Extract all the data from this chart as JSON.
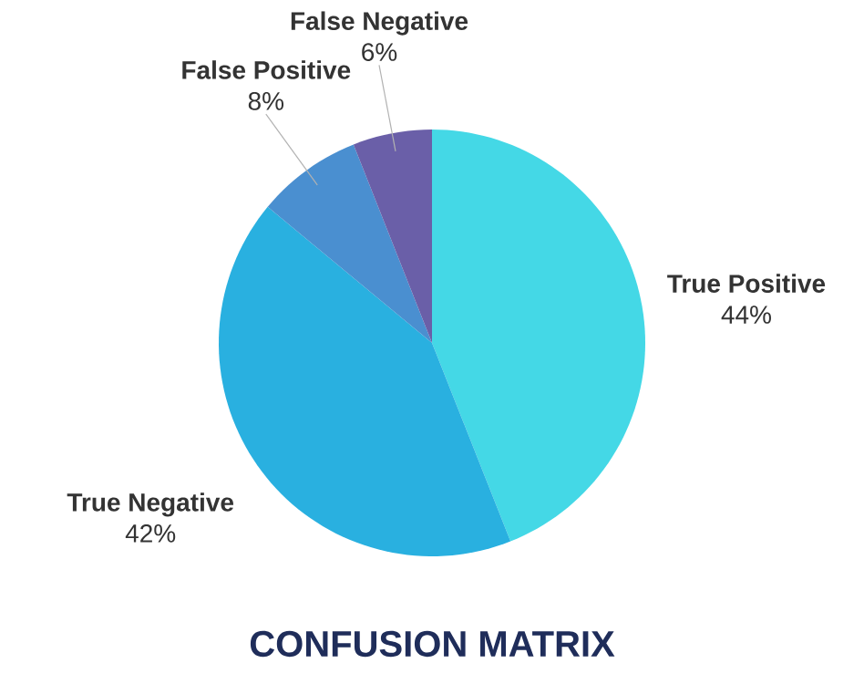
{
  "chart_data": {
    "type": "pie",
    "title": "CONFUSION MATRIX",
    "categories": [
      "True Positive",
      "True Negative",
      "False Positive",
      "False Negative"
    ],
    "values": [
      44,
      42,
      8,
      6
    ],
    "value_labels": [
      "44%",
      "42%",
      "8%",
      "6%"
    ],
    "colors": [
      "#44d8e6",
      "#29b0e0",
      "#4a8fd0",
      "#6a5fa8"
    ]
  }
}
